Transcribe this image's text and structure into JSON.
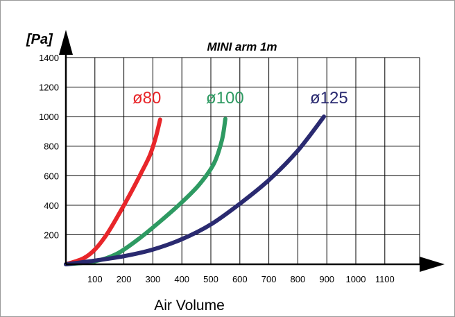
{
  "chart_data": {
    "type": "line",
    "title": "MINI arm 1m",
    "ylabel": "[Pa]",
    "xlabel": "Air Volume",
    "xlim": [
      0,
      1250
    ],
    "ylim": [
      0,
      1400
    ],
    "xticks": [
      100,
      200,
      300,
      400,
      500,
      600,
      700,
      800,
      900,
      1000,
      1100
    ],
    "yticks": [
      200,
      400,
      600,
      800,
      1000,
      1200,
      1400
    ],
    "grid": true,
    "series": [
      {
        "name": "ø80",
        "color": "#e8262a",
        "points": [
          [
            0,
            0
          ],
          [
            60,
            40
          ],
          [
            100,
            100
          ],
          [
            140,
            200
          ],
          [
            180,
            330
          ],
          [
            220,
            470
          ],
          [
            260,
            620
          ],
          [
            290,
            740
          ],
          [
            310,
            860
          ],
          [
            325,
            980
          ]
        ]
      },
      {
        "name": "ø100",
        "color": "#2e9a62",
        "points": [
          [
            0,
            0
          ],
          [
            100,
            20
          ],
          [
            175,
            70
          ],
          [
            250,
            170
          ],
          [
            325,
            290
          ],
          [
            400,
            420
          ],
          [
            460,
            540
          ],
          [
            510,
            680
          ],
          [
            538,
            840
          ],
          [
            550,
            985
          ]
        ]
      },
      {
        "name": "ø125",
        "color": "#2a2a70",
        "points": [
          [
            0,
            0
          ],
          [
            100,
            25
          ],
          [
            200,
            55
          ],
          [
            300,
            100
          ],
          [
            400,
            170
          ],
          [
            500,
            270
          ],
          [
            600,
            410
          ],
          [
            700,
            570
          ],
          [
            800,
            770
          ],
          [
            890,
            1000
          ]
        ]
      }
    ]
  }
}
